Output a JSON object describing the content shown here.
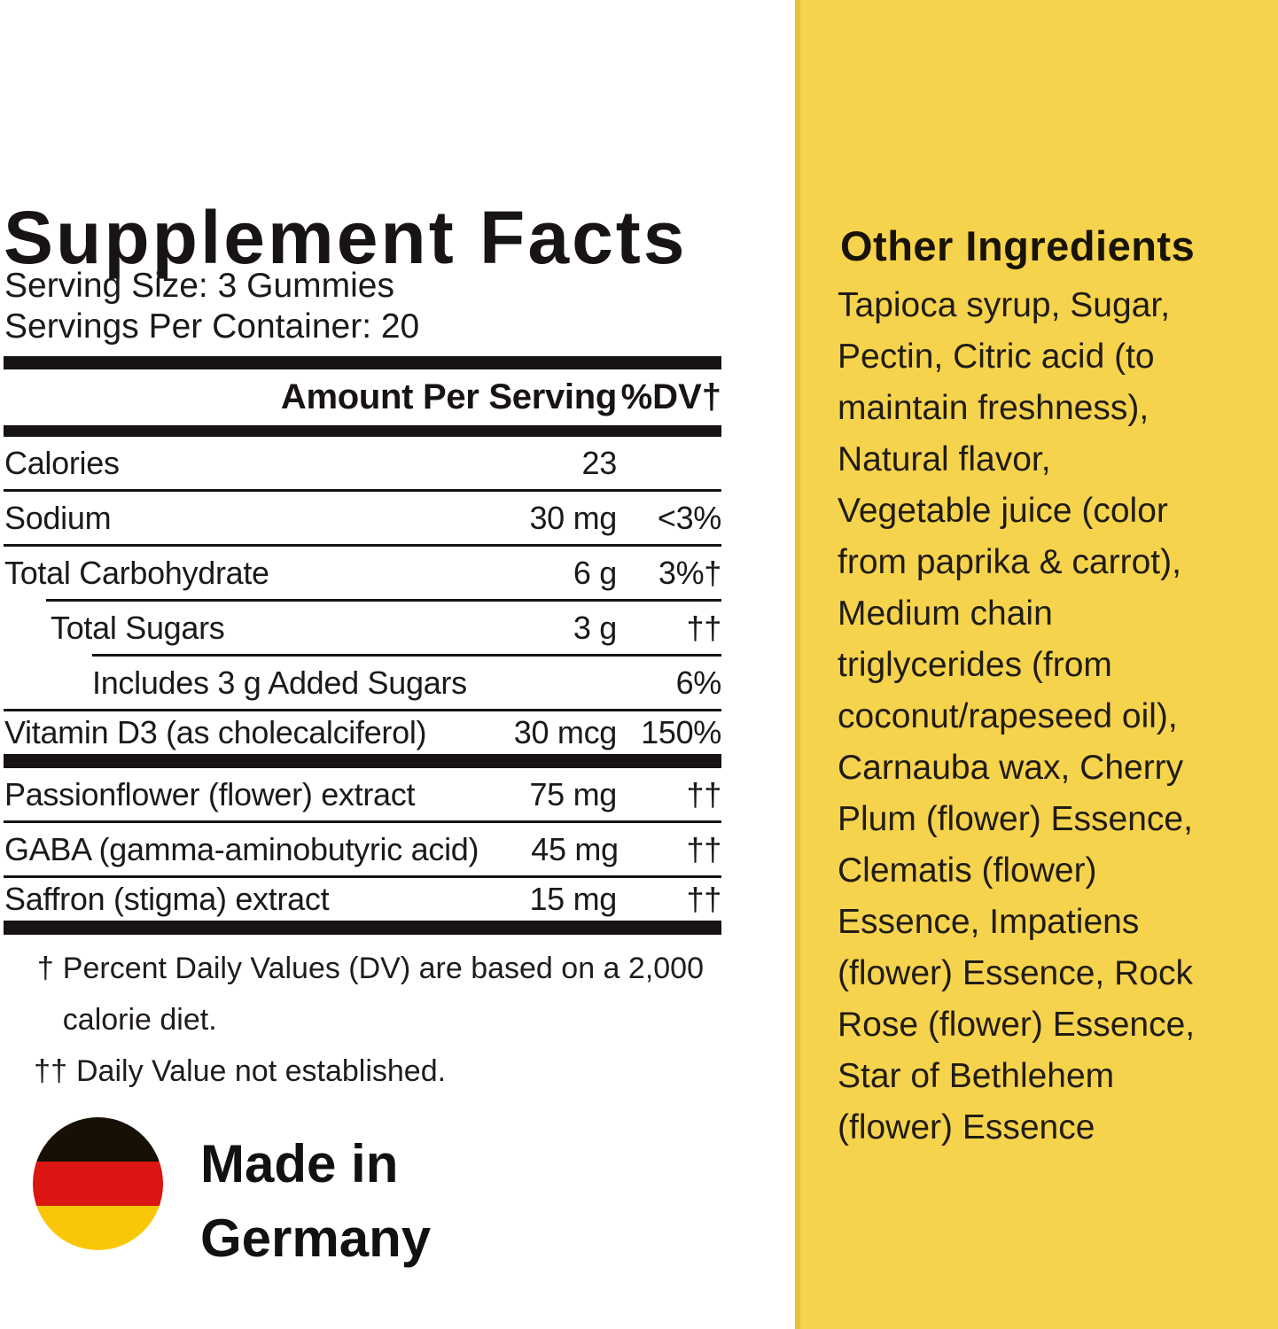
{
  "colors": {
    "panel_yellow": "#f6d34c",
    "panel_edge": "#eac33c",
    "bar_black": "#161215",
    "text_black": "#1c1917",
    "flag_black": "#171007",
    "flag_red": "#db1511",
    "flag_gold": "#f9c708"
  },
  "supplement_facts": {
    "title": "Supplement Facts",
    "serving_size": "Serving Size: 3 Gummies",
    "servings_per_container": "Servings Per Container: 20",
    "header": {
      "amount": "Amount Per Serving",
      "dv": "%DV†"
    },
    "rows": [
      {
        "name": "Calories",
        "amount": "23",
        "dv": "",
        "indent": 0,
        "divider_after": "full"
      },
      {
        "name": "Sodium",
        "amount": "30 mg",
        "dv": "<3%",
        "indent": 0,
        "divider_after": "full"
      },
      {
        "name": "Total Carbohydrate",
        "amount": "6 g",
        "dv": "3%†",
        "indent": 0,
        "divider_after": "indent1"
      },
      {
        "name": "Total Sugars",
        "amount": "3 g",
        "dv": "††",
        "indent": 1,
        "divider_after": "indent2"
      },
      {
        "name": "Includes 3 g Added Sugars",
        "amount": "",
        "dv": "6%",
        "indent": 2,
        "divider_after": "full"
      },
      {
        "name": "Vitamin D3 (as cholecalciferol)",
        "amount": "30 mcg",
        "dv": "150%",
        "indent": 0,
        "divider_after": "thick"
      },
      {
        "name": "Passionflower (flower) extract",
        "amount": "75 mg",
        "dv": "††",
        "indent": 0,
        "divider_after": "full"
      },
      {
        "name": "GABA (gamma-aminobutyric acid)",
        "amount": "45 mg",
        "dv": "††",
        "indent": 0,
        "divider_after": "full"
      },
      {
        "name": "Saffron (stigma) extract",
        "amount": "15 mg",
        "dv": "††",
        "indent": 0,
        "divider_after": "thick"
      }
    ],
    "footnotes": [
      {
        "symbol": "†",
        "lines": [
          "Percent Daily Values (DV) are based on a 2,000",
          "calorie diet."
        ]
      },
      {
        "symbol": "††",
        "lines": [
          "Daily Value not established."
        ]
      }
    ]
  },
  "made_in": {
    "line1": "Made in",
    "line2": "Germany",
    "flag": "germany-flag"
  },
  "other_ingredients": {
    "heading": "Other Ingredients",
    "lines": [
      "Tapioca syrup, Sugar,",
      "Pectin, Citric acid (to",
      "maintain freshness),",
      "Natural flavor,",
      "Vegetable juice (color",
      "from paprika & carrot),",
      "Medium chain",
      "triglycerides (from",
      "coconut/rapeseed oil),",
      "Carnauba wax, Cherry",
      "Plum (flower) Essence,",
      "Clematis (flower)",
      "Essence, Impatiens",
      "(flower) Essence, Rock",
      "Rose (flower) Essence,",
      "Star of Bethlehem",
      "(flower) Essence"
    ]
  }
}
